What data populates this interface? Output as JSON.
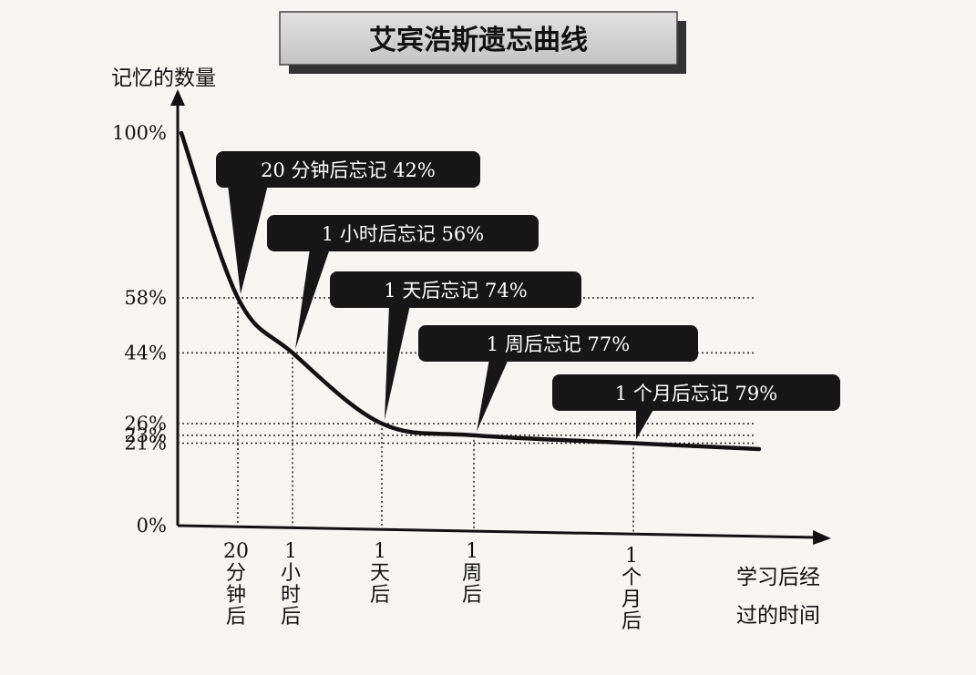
{
  "chart_data": {
    "type": "line",
    "title": "艾宾浩斯遗忘曲线",
    "ylabel": "记忆的数量",
    "xlabel_lines": [
      "学习后经",
      "过的时间"
    ],
    "ylim": [
      0,
      100
    ],
    "y_ticks": [
      {
        "value": 100,
        "label": "100%"
      },
      {
        "value": 58,
        "label": "58%"
      },
      {
        "value": 44,
        "label": "44%"
      },
      {
        "value": 26,
        "label": "26%"
      },
      {
        "value": 23,
        "label": "23%"
      },
      {
        "value": 21,
        "label": "21%"
      },
      {
        "value": 0,
        "label": "0%"
      }
    ],
    "points": [
      {
        "x": "20分钟后",
        "x_label": [
          "20",
          "分",
          "钟",
          "后"
        ],
        "y": 58,
        "callout": "20 分钟后忘记 42%"
      },
      {
        "x": "1小时后",
        "x_label": [
          "1",
          "小",
          "时",
          "后"
        ],
        "y": 44,
        "callout": "1 小时后忘记 56%"
      },
      {
        "x": "1天后",
        "x_label": [
          "1",
          "天",
          "后"
        ],
        "y": 26,
        "callout": "1 天后忘记 74%"
      },
      {
        "x": "1周后",
        "x_label": [
          "1",
          "周",
          "后"
        ],
        "y": 23,
        "callout": "1 周后忘记 77%"
      },
      {
        "x": "1个月后",
        "x_label": [
          "1",
          "个",
          "月",
          "后"
        ],
        "y": 21,
        "callout": "1 个月后忘记 79%"
      }
    ],
    "start": {
      "y": 100
    },
    "end_y": 19.5,
    "grid": "dotted-guides",
    "legend": "none"
  }
}
